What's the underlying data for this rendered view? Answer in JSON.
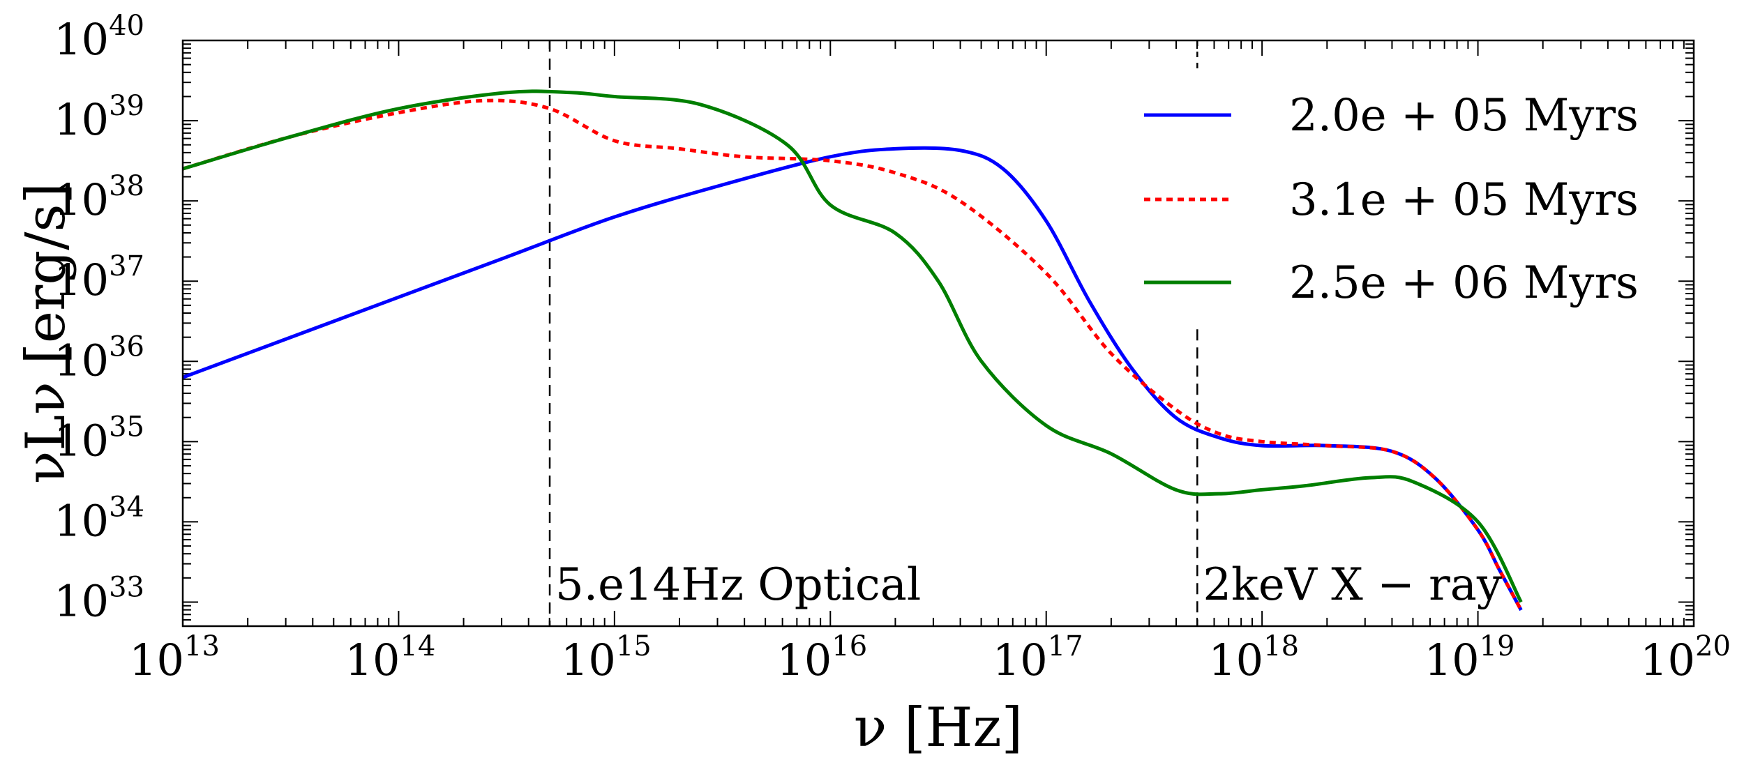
{
  "chart_data": {
    "type": "line",
    "title": "",
    "xlabel": "ν [Hz]",
    "ylabel": "νLν [erg/s]",
    "xscale": "log",
    "yscale": "log",
    "xlim_exp": [
      13,
      20
    ],
    "ylim_exp": [
      32.7,
      40
    ],
    "x_ticks": [
      {
        "base": "10",
        "exp": "13",
        "value": 13
      },
      {
        "base": "10",
        "exp": "14",
        "value": 14
      },
      {
        "base": "10",
        "exp": "15",
        "value": 15
      },
      {
        "base": "10",
        "exp": "16",
        "value": 16
      },
      {
        "base": "10",
        "exp": "17",
        "value": 17
      },
      {
        "base": "10",
        "exp": "18",
        "value": 18
      },
      {
        "base": "10",
        "exp": "19",
        "value": 19
      },
      {
        "base": "10",
        "exp": "20",
        "value": 20
      }
    ],
    "y_ticks": [
      {
        "base": "10",
        "exp": "33",
        "value": 33
      },
      {
        "base": "10",
        "exp": "34",
        "value": 34
      },
      {
        "base": "10",
        "exp": "35",
        "value": 35
      },
      {
        "base": "10",
        "exp": "36",
        "value": 36
      },
      {
        "base": "10",
        "exp": "37",
        "value": 37
      },
      {
        "base": "10",
        "exp": "38",
        "value": 38
      },
      {
        "base": "10",
        "exp": "39",
        "value": 39
      },
      {
        "base": "10",
        "exp": "40",
        "value": 40
      }
    ],
    "legend_position": "top-right",
    "series": [
      {
        "name": "2.0e + 05 Myrs",
        "color": "#0000ff",
        "style": "solid",
        "log_x": [
          13.0,
          13.5,
          14.0,
          14.5,
          15.0,
          15.5,
          16.0,
          16.3,
          16.6,
          16.8,
          17.0,
          17.2,
          17.4,
          17.6,
          17.8,
          18.0,
          18.3,
          18.6,
          18.8,
          19.0,
          19.1,
          19.2
        ],
        "log_y": [
          35.8,
          36.3,
          36.8,
          37.3,
          37.8,
          38.2,
          38.55,
          38.65,
          38.63,
          38.4,
          37.75,
          36.75,
          35.9,
          35.3,
          35.05,
          34.95,
          34.95,
          34.88,
          34.55,
          33.9,
          33.4,
          32.9
        ]
      },
      {
        "name": "3.1e + 05 Myrs",
        "color": "#ff0000",
        "style": "dotted",
        "log_x": [
          13.0,
          13.5,
          14.0,
          14.4,
          14.7,
          15.0,
          15.3,
          15.6,
          16.0,
          16.3,
          16.6,
          17.0,
          17.3,
          17.6,
          17.8,
          18.0,
          18.3,
          18.6,
          18.8,
          19.0,
          19.1,
          19.2
        ],
        "log_y": [
          38.4,
          38.8,
          39.1,
          39.25,
          39.15,
          38.75,
          38.65,
          38.55,
          38.5,
          38.35,
          38.0,
          37.1,
          36.1,
          35.4,
          35.1,
          35.0,
          34.95,
          34.88,
          34.55,
          33.9,
          33.4,
          32.9
        ]
      },
      {
        "name": "2.5e + 06 Myrs",
        "color": "#007f00",
        "style": "solid",
        "log_x": [
          13.0,
          13.5,
          14.0,
          14.5,
          14.8,
          15.0,
          15.4,
          15.8,
          16.0,
          16.3,
          16.5,
          16.7,
          17.0,
          17.3,
          17.6,
          17.8,
          18.0,
          18.2,
          18.5,
          18.7,
          19.0,
          19.2
        ],
        "log_y": [
          38.4,
          38.8,
          39.15,
          39.35,
          39.35,
          39.3,
          39.2,
          38.7,
          37.95,
          37.6,
          37.0,
          36.0,
          35.2,
          34.85,
          34.4,
          34.35,
          34.4,
          34.45,
          34.55,
          34.5,
          34.0,
          33.0
        ]
      }
    ],
    "vlines": [
      {
        "log_x": 14.7,
        "label": "5.e14Hz Optical"
      },
      {
        "log_x": 17.7,
        "label": "2keV X − ray"
      }
    ]
  }
}
